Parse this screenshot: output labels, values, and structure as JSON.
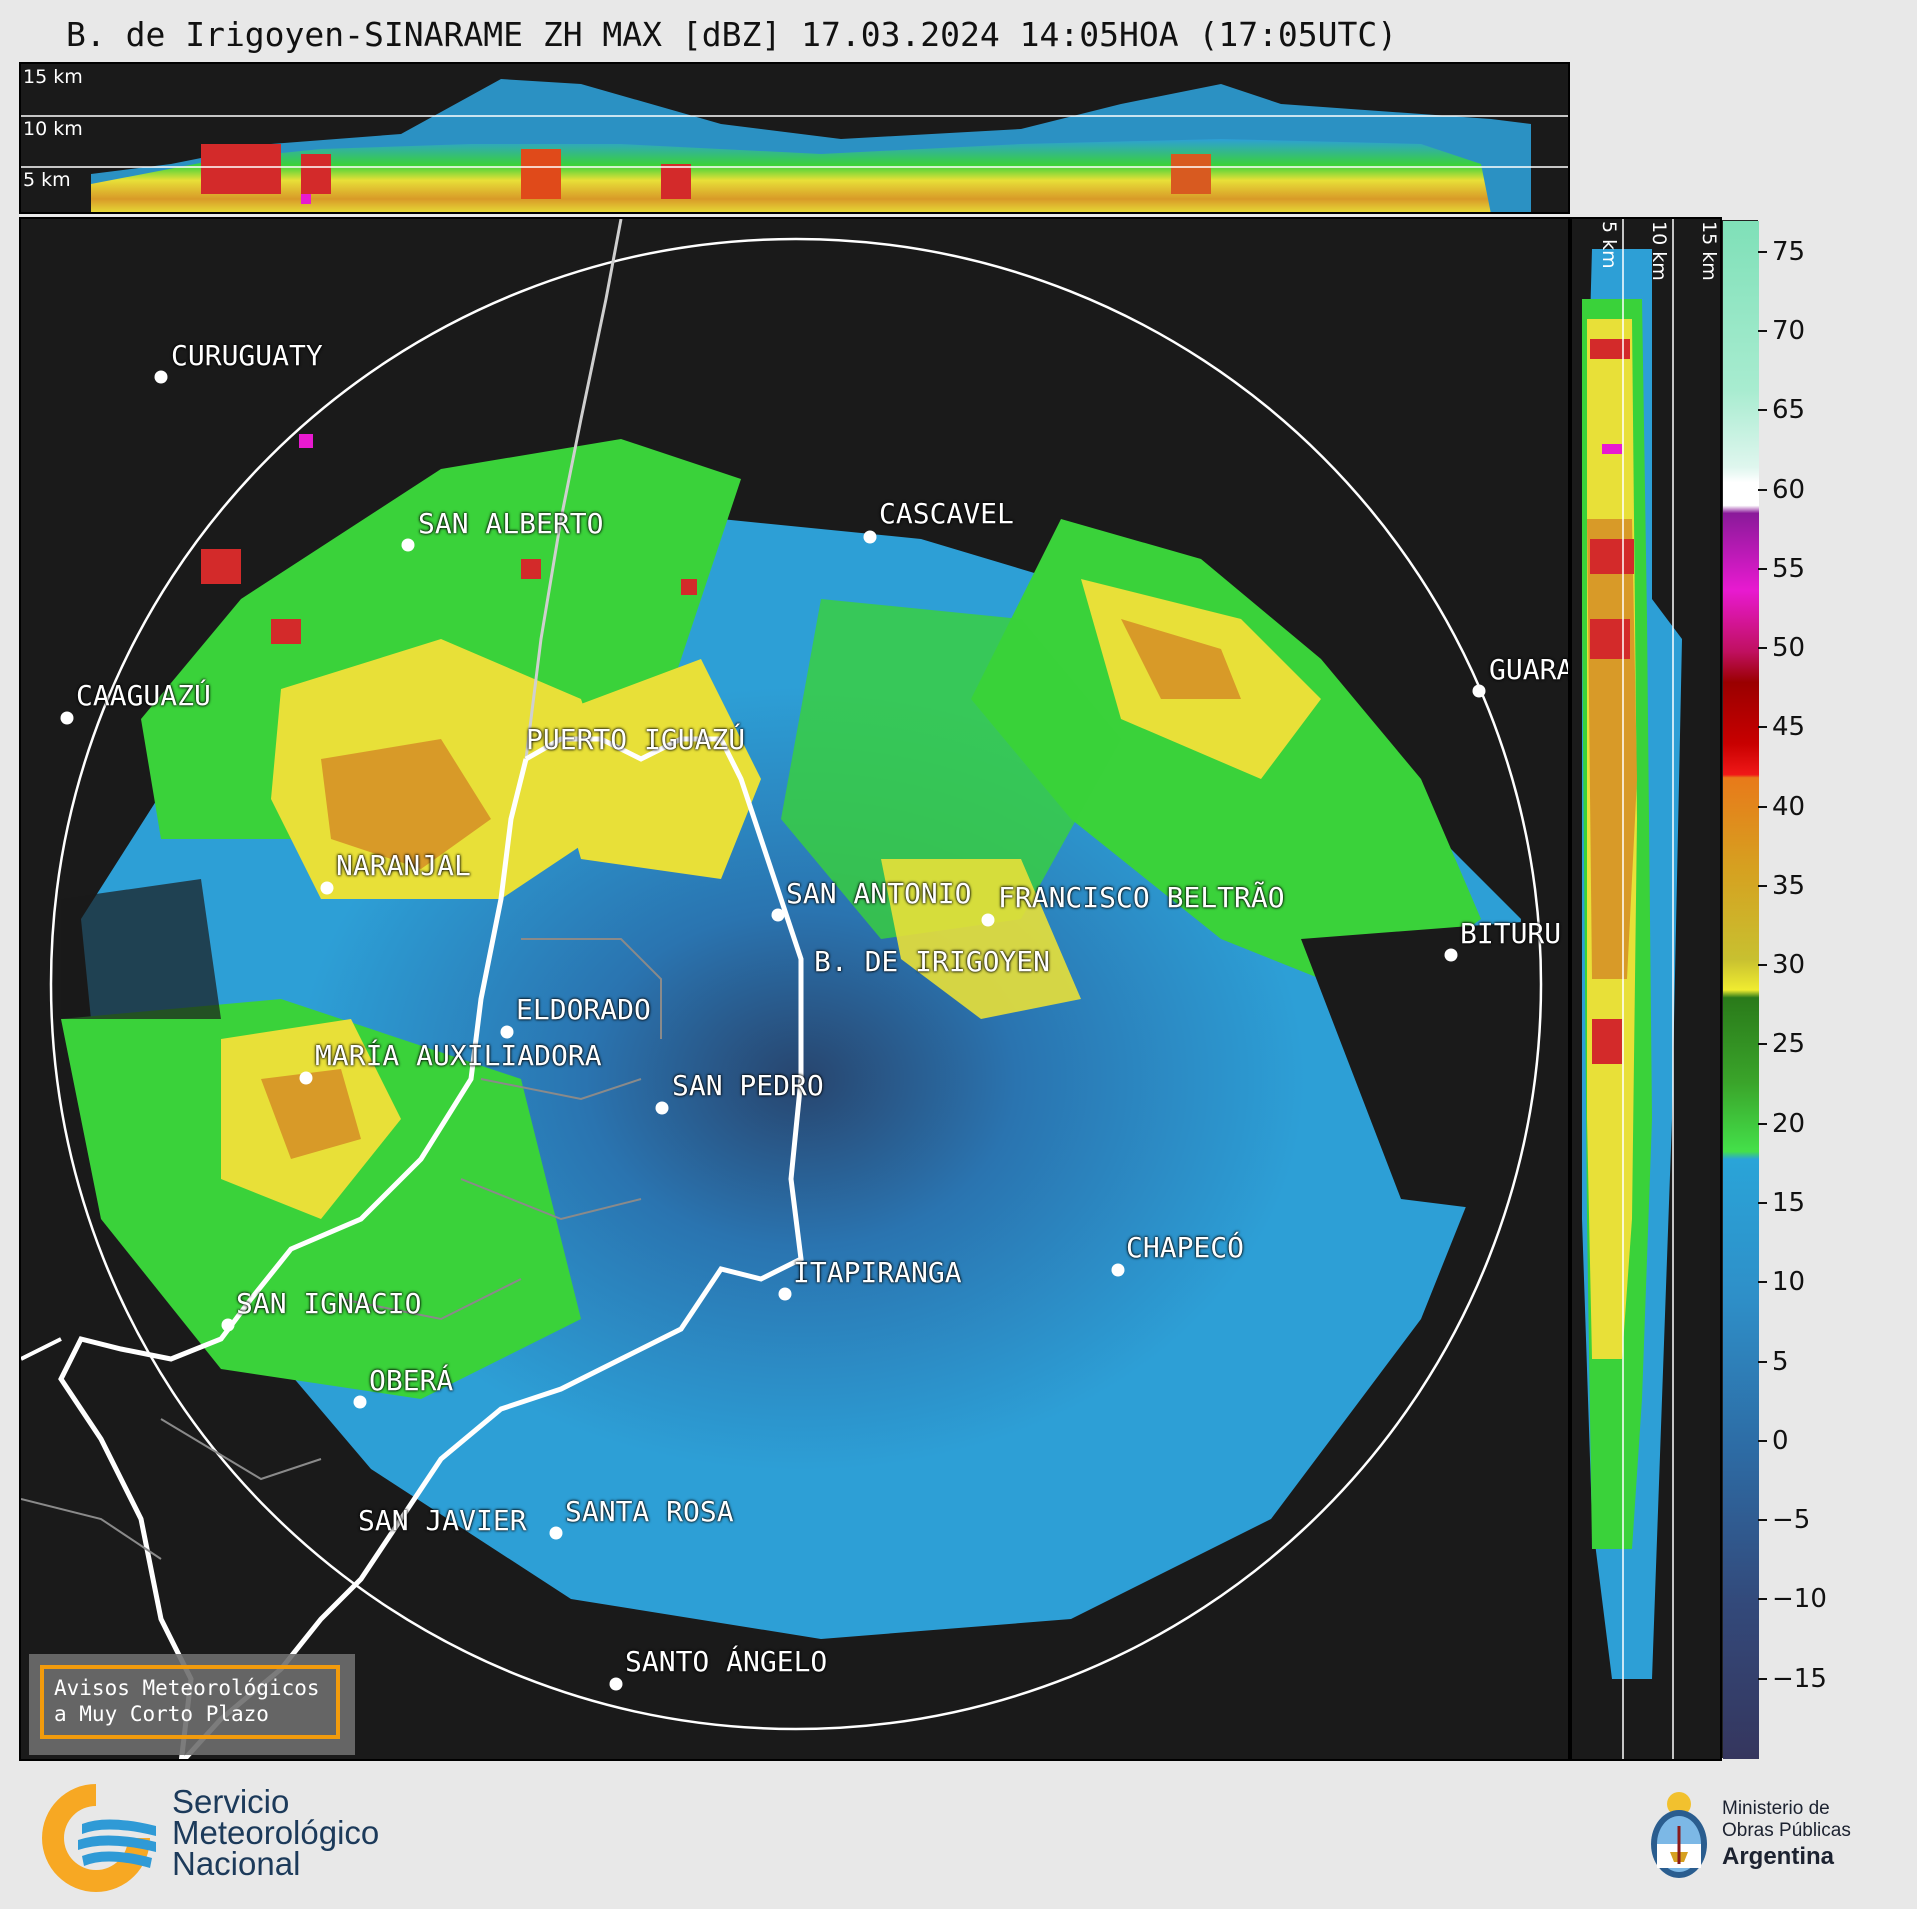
{
  "title": "B. de Irigoyen-SINARAME ZH MAX [dBZ] 17.03.2024 14:05HOA (17:05UTC)",
  "top_panel": {
    "height_labels": [
      "15 km",
      "10 km",
      "5 km"
    ]
  },
  "side_panel": {
    "height_labels": [
      "5 km",
      "10 km",
      "15 km"
    ]
  },
  "cities": [
    {
      "name": "CURUGUATY",
      "id": "curuguaty"
    },
    {
      "name": "SAN ALBERTO",
      "id": "san-alberto"
    },
    {
      "name": "CASCAVEL",
      "id": "cascavel"
    },
    {
      "name": "CAAGUAZÚ",
      "id": "caaguazu"
    },
    {
      "name": "PUERTO IGUAZÚ",
      "id": "puerto-iguazu"
    },
    {
      "name": "GUARA",
      "id": "guara"
    },
    {
      "name": "NARANJAL",
      "id": "naranjal"
    },
    {
      "name": "SAN ANTONIO",
      "id": "san-antonio"
    },
    {
      "name": "FRANCISCO BELTRÃO",
      "id": "francisco-beltrao"
    },
    {
      "name": "BITURU",
      "id": "bituru"
    },
    {
      "name": "B. DE IRIGOYEN",
      "id": "b-de-irigoyen"
    },
    {
      "name": "ELDORADO",
      "id": "eldorado"
    },
    {
      "name": "MARÍA AUXILIADORA",
      "id": "maria-auxiliadora"
    },
    {
      "name": "SAN PEDRO",
      "id": "san-pedro"
    },
    {
      "name": "CHAPECÓ",
      "id": "chapeco"
    },
    {
      "name": "ITAPIRANGA",
      "id": "itapiranga"
    },
    {
      "name": "SAN IGNACIO",
      "id": "san-ignacio"
    },
    {
      "name": "OBERÁ",
      "id": "obera"
    },
    {
      "name": "SAN JAVIER",
      "id": "san-javier"
    },
    {
      "name": "SANTA ROSA",
      "id": "santa-rosa"
    },
    {
      "name": "SANTO ÁNGELO",
      "id": "santo-angelo"
    }
  ],
  "avisos": {
    "line1": "Avisos Meteorológicos",
    "line2": "a Muy Corto Plazo",
    "border_color": "#f29b0c"
  },
  "colorbar": {
    "unit": "dBZ",
    "range": [
      -20,
      77
    ],
    "ticks": [
      "75",
      "70",
      "65",
      "60",
      "55",
      "50",
      "45",
      "40",
      "35",
      "30",
      "25",
      "20",
      "15",
      "10",
      "5",
      "0",
      "−5",
      "−10",
      "−15"
    ],
    "tick_values": [
      75,
      70,
      65,
      60,
      55,
      50,
      45,
      40,
      35,
      30,
      25,
      20,
      15,
      10,
      5,
      0,
      -5,
      -10,
      -15
    ]
  },
  "footer": {
    "agency_line1": "Servicio",
    "agency_line2": "Meteorológico",
    "agency_line3": "Nacional",
    "ministry_line1": "Ministerio de",
    "ministry_line2": "Obras Públicas",
    "ministry_line3": "Argentina",
    "agency_colors": {
      "orange": "#f7a823",
      "blue": "#2f9ad6"
    }
  }
}
